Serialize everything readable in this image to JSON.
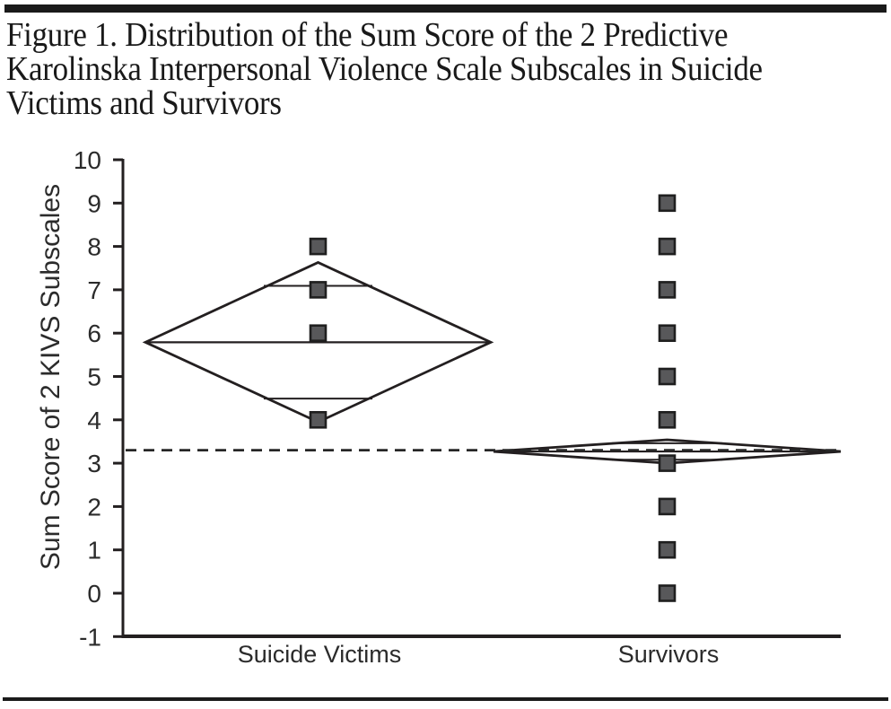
{
  "figure": {
    "title_lines": [
      "Figure 1. Distribution of the Sum Score of the 2 Predictive",
      "Karolinska Interpersonal Violence Scale Subscales in Suicide",
      "Victims and Survivors"
    ]
  },
  "chart_data": {
    "type": "scatter",
    "variant": "means-diamond-dot-plot",
    "title": "",
    "xlabel": "",
    "ylabel": "Sum Score of 2 KIVS Subscales",
    "ylim": [
      -1,
      10
    ],
    "yticks": [
      10,
      9,
      8,
      7,
      6,
      5,
      4,
      3,
      2,
      1,
      0,
      -1
    ],
    "grid": false,
    "legend": null,
    "grand_mean_line": {
      "value": 3.3,
      "style": "dashed"
    },
    "groups": [
      {
        "label": "Suicide Victims",
        "points": [
          8,
          7,
          6,
          4
        ],
        "mean": 5.79,
        "ci_low": 3.95,
        "ci_high": 7.63,
        "overlap_low": 4.49,
        "overlap_high": 7.09
      },
      {
        "label": "Survivors",
        "points": [
          9,
          8,
          7,
          6,
          5,
          4,
          3,
          2,
          1,
          0
        ],
        "mean": 3.27,
        "ci_low": 3.0,
        "ci_high": 3.54,
        "overlap_low": 3.08,
        "overlap_high": 3.46
      }
    ],
    "marker": {
      "shape": "square",
      "fill": "#58585a",
      "stroke": "#1f1f1f",
      "size": 17
    },
    "line_color": "#231f20"
  }
}
